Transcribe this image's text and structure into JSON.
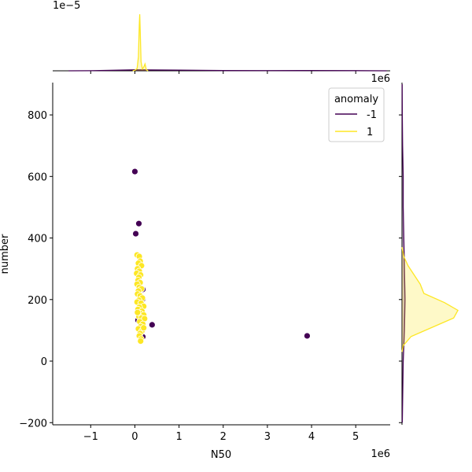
{
  "chart_data": {
    "type": "scatter",
    "x_label": "N50",
    "y_label": "number",
    "x_offset": "1e6",
    "top_x_offset": "1e6",
    "top_y_offset": "1e−5",
    "xlim": [
      -1.86,
      5.78
    ],
    "ylim": [
      -207,
      905
    ],
    "xticks": [
      {
        "value": -1,
        "label": "−1"
      },
      0,
      1,
      2,
      3,
      4,
      5
    ],
    "yticks": [
      {
        "value": -200,
        "label": "−200"
      },
      0,
      200,
      400,
      600,
      800
    ],
    "legend_title": "anomaly",
    "legend_loc": "upper right",
    "top_ylim": [
      0,
      1.3
    ],
    "right_xlim": [
      0,
      1.1
    ],
    "series": [
      {
        "name": "-1",
        "color": "#440154",
        "x": [
          0.0,
          0.09,
          0.02,
          0.18,
          0.18,
          0.39,
          3.9,
          0.07,
          0.18
        ],
        "y": [
          616,
          447,
          414,
          233,
          202,
          118,
          82,
          133,
          79
        ],
        "kde_x": {
          "grid": [
            -1.5,
            -1,
            0,
            1,
            2,
            3,
            4,
            5,
            5.7
          ],
          "density": [
            0,
            0.002,
            0.02,
            0.015,
            0.005,
            0.004,
            0.006,
            0.003,
            0
          ]
        },
        "kde_y": {
          "grid": [
            -200,
            0,
            100,
            200,
            300,
            400,
            500,
            600,
            700,
            800,
            900
          ],
          "density": [
            0.005,
            0.02,
            0.04,
            0.05,
            0.04,
            0.03,
            0.02,
            0.02,
            0.01,
            0.005,
            0.003
          ]
        }
      },
      {
        "name": "1",
        "color": "#fde725",
        "x": [
          0.05,
          0.1,
          0.12,
          0.08,
          0.15,
          0.06,
          0.1,
          0.04,
          0.13,
          0.09,
          0.07,
          0.12,
          0.05,
          0.1,
          0.15,
          0.08,
          0.06,
          0.12,
          0.17,
          0.09,
          0.05,
          0.14,
          0.2,
          0.1,
          0.07,
          0.16,
          0.12,
          0.2,
          0.09,
          0.15,
          0.22,
          0.11,
          0.18,
          0.13,
          0.08,
          0.16,
          0.12,
          0.1,
          0.14,
          0.13,
          0.2,
          0.06
        ],
        "y": [
          345,
          340,
          325,
          318,
          310,
          300,
          292,
          285,
          280,
          272,
          262,
          255,
          250,
          240,
          235,
          228,
          218,
          212,
          205,
          198,
          192,
          188,
          178,
          175,
          168,
          162,
          155,
          150,
          145,
          140,
          138,
          128,
          120,
          112,
          105,
          98,
          90,
          82,
          72,
          65,
          108,
          158
        ],
        "kde_x": {
          "grid": [
            -0.05,
            0,
            0.05,
            0.08,
            0.1,
            0.11,
            0.12,
            0.14,
            0.17,
            0.2,
            0.23,
            0.26,
            0.3
          ],
          "density": [
            0,
            0.01,
            0.05,
            0.3,
            1.0,
            1.23,
            0.9,
            0.2,
            0.04,
            0.08,
            0.15,
            0.02,
            0
          ]
        },
        "kde_y": {
          "grid": [
            30,
            50,
            80,
            110,
            140,
            165,
            190,
            220,
            250,
            280,
            310,
            340,
            370
          ],
          "density": [
            0,
            0.02,
            0.15,
            0.5,
            0.85,
            0.92,
            0.7,
            0.36,
            0.3,
            0.2,
            0.1,
            0.03,
            0
          ]
        }
      }
    ]
  }
}
